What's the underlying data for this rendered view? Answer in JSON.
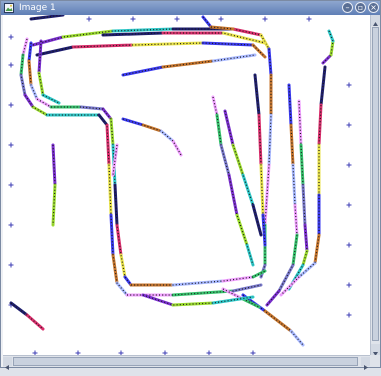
{
  "window": {
    "title": "Image 1",
    "minimize_glyph": "–",
    "restore_glyph": "▫",
    "close_glyph": "×"
  },
  "icons": {
    "window": "image-window-icon",
    "minimize": "minimize-icon",
    "restore": "restore-icon",
    "close": "close-icon",
    "scroll_up": "arrow-up-icon",
    "scroll_down": "arrow-down-icon",
    "scroll_left": "arrow-left-icon",
    "scroll_right": "arrow-right-icon"
  },
  "colors": {
    "titlebar": "#6f8dc2",
    "canvas_background": "#ffffff",
    "grid_marker": "#3c3cb4",
    "palette": [
      "#7b2fd0",
      "#9bdb2f",
      "#2ec7c7",
      "#1e1e6e",
      "#d92e6c",
      "#e8e24a",
      "#3a3af0",
      "#c7762e",
      "#a9b9ff",
      "#f0a0ff",
      "#37c36e",
      "#7a7acc"
    ]
  }
}
